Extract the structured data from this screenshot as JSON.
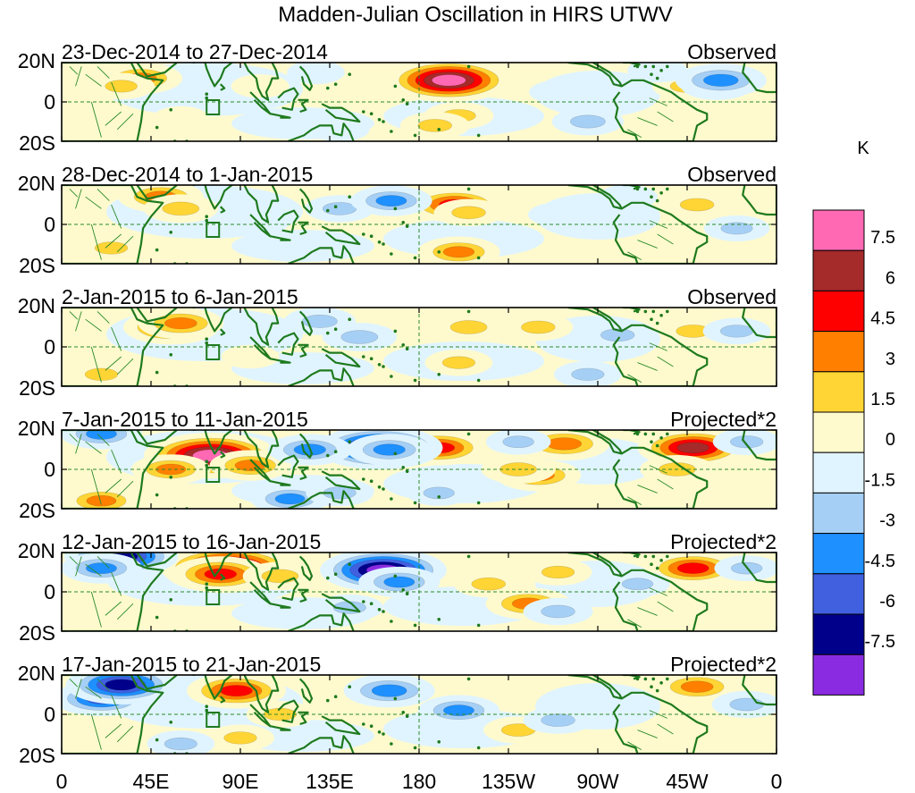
{
  "chart_data": {
    "type": "heatmap",
    "title": "Madden-Julian Oscillation in HIRS UTWV",
    "units_label": "K",
    "x_ticks": [
      "0",
      "45E",
      "90E",
      "135E",
      "180",
      "135W",
      "90W",
      "45W",
      "0"
    ],
    "y_ticks": [
      "20N",
      "0",
      "20S"
    ],
    "x_range_deg_east": [
      0,
      360
    ],
    "y_range_deg": [
      -20,
      20
    ],
    "colorbar": {
      "levels": [
        "-7.5",
        "-6",
        "-4.5",
        "-3",
        "-1.5",
        "0",
        "1.5",
        "3",
        "4.5",
        "6",
        "7.5"
      ],
      "colors": [
        "#8a2be2",
        "#00008b",
        "#4060e0",
        "#1e90ff",
        "#a6cff5",
        "#e0f4ff",
        "#fffacd",
        "#ffd535",
        "#ff7f00",
        "#ff0000",
        "#a52a2a",
        "#ff69b4"
      ]
    },
    "panels": [
      {
        "period": "23-Dec-2014 to 27-Dec-2014",
        "label": "Observed"
      },
      {
        "period": "28-Dec-2014 to 1-Jan-2015",
        "label": "Observed"
      },
      {
        "period": "2-Jan-2015 to 6-Jan-2015",
        "label": "Observed"
      },
      {
        "period": "7-Jan-2015 to 11-Jan-2015",
        "label": "Projected*2"
      },
      {
        "period": "12-Jan-2015 to 16-Jan-2015",
        "label": "Projected*2"
      },
      {
        "period": "17-Jan-2015 to 21-Jan-2015",
        "label": "Projected*2"
      }
    ],
    "anomaly_features": [
      [
        {
          "lon": 190,
          "lat": 11,
          "level": 2.5
        },
        {
          "lon": 195,
          "lat": 11,
          "level": 7.8
        },
        {
          "lon": 40,
          "lat": 12,
          "level": 3.3
        },
        {
          "lon": 30,
          "lat": 8,
          "level": 1.7
        },
        {
          "lon": 200,
          "lat": -7,
          "level": 2.0
        },
        {
          "lon": 188,
          "lat": -12,
          "level": 2.0
        },
        {
          "lon": 315,
          "lat": 8,
          "level": 2.0
        },
        {
          "lon": 100,
          "lat": 8,
          "level": 0.8
        },
        {
          "lon": 60,
          "lat": -8,
          "level": 0.5
        },
        {
          "lon": 128,
          "lat": 15,
          "level": -0.8
        },
        {
          "lon": 250,
          "lat": 5,
          "level": -0.8
        },
        {
          "lon": 265,
          "lat": -10,
          "level": -2.2
        },
        {
          "lon": 330,
          "lat": 8,
          "level": -2.2
        },
        {
          "lon": 332,
          "lat": 11,
          "level": -4.2
        },
        {
          "lon": 300,
          "lat": 16,
          "level": -1.0
        },
        {
          "lon": 140,
          "lat": -14,
          "level": -1.0
        }
      ],
      [
        {
          "lon": 50,
          "lat": 14,
          "level": 3.6
        },
        {
          "lon": 60,
          "lat": 8,
          "level": 2.5
        },
        {
          "lon": 198,
          "lat": 10,
          "level": 4.8
        },
        {
          "lon": 205,
          "lat": 6,
          "level": 2.0
        },
        {
          "lon": 200,
          "lat": -14,
          "level": 3.3
        },
        {
          "lon": 320,
          "lat": 10,
          "level": 2.0
        },
        {
          "lon": 25,
          "lat": -12,
          "level": 1.8
        },
        {
          "lon": 140,
          "lat": 8,
          "level": -2.0
        },
        {
          "lon": 166,
          "lat": 12,
          "level": -3.2
        },
        {
          "lon": 100,
          "lat": 0,
          "level": -0.5
        },
        {
          "lon": 250,
          "lat": 5,
          "level": -1.0
        },
        {
          "lon": 340,
          "lat": -2,
          "level": -1.6
        },
        {
          "lon": 285,
          "lat": 14,
          "level": -1.0
        }
      ],
      [
        {
          "lon": 55,
          "lat": 10,
          "level": 4.6
        },
        {
          "lon": 60,
          "lat": 12,
          "level": 3.6
        },
        {
          "lon": 205,
          "lat": 10,
          "level": 2.5
        },
        {
          "lon": 240,
          "lat": 10,
          "level": 2.0
        },
        {
          "lon": 200,
          "lat": -8,
          "level": 1.8
        },
        {
          "lon": 95,
          "lat": -5,
          "level": 0.8
        },
        {
          "lon": 318,
          "lat": 8,
          "level": 2.0
        },
        {
          "lon": 20,
          "lat": -14,
          "level": 1.8
        },
        {
          "lon": 130,
          "lat": 13,
          "level": -2.2
        },
        {
          "lon": 150,
          "lat": 5,
          "level": -2.5
        },
        {
          "lon": 280,
          "lat": 6,
          "level": -2.0
        },
        {
          "lon": 265,
          "lat": -14,
          "level": -1.8
        },
        {
          "lon": 340,
          "lat": 8,
          "level": -1.8
        }
      ],
      [
        {
          "lon": 78,
          "lat": 8,
          "level": 7.0
        },
        {
          "lon": 75,
          "lat": 7,
          "level": 8.5
        },
        {
          "lon": 55,
          "lat": 0,
          "level": 3.0
        },
        {
          "lon": 95,
          "lat": 2,
          "level": 3.2
        },
        {
          "lon": 190,
          "lat": 11,
          "level": 4.8
        },
        {
          "lon": 253,
          "lat": 13,
          "level": 4.2
        },
        {
          "lon": 240,
          "lat": -3,
          "level": 3.6
        },
        {
          "lon": 230,
          "lat": 0,
          "level": 2.5
        },
        {
          "lon": 318,
          "lat": 11,
          "level": 6.2
        },
        {
          "lon": 310,
          "lat": 0,
          "level": 2.5
        },
        {
          "lon": 20,
          "lat": -16,
          "level": 3.0
        },
        {
          "lon": 160,
          "lat": 11,
          "level": -7.8
        },
        {
          "lon": 165,
          "lat": 10,
          "level": -3.5
        },
        {
          "lon": 125,
          "lat": 10,
          "level": -3.5
        },
        {
          "lon": 230,
          "lat": 14,
          "level": -1.5
        },
        {
          "lon": 115,
          "lat": -15,
          "level": -3.0
        },
        {
          "lon": 140,
          "lat": -12,
          "level": -1.8
        },
        {
          "lon": 20,
          "lat": 18,
          "level": -3.2
        },
        {
          "lon": 345,
          "lat": 14,
          "level": -1.8
        },
        {
          "lon": 190,
          "lat": -12,
          "level": -1.5
        }
      ],
      [
        {
          "lon": 82,
          "lat": 10,
          "level": 7.0
        },
        {
          "lon": 84,
          "lat": 12,
          "level": 8.6
        },
        {
          "lon": 80,
          "lat": 9,
          "level": 5.0
        },
        {
          "lon": 110,
          "lat": 8,
          "level": 2.5
        },
        {
          "lon": 235,
          "lat": -6,
          "level": 3.6
        },
        {
          "lon": 215,
          "lat": 4,
          "level": 2.0
        },
        {
          "lon": 318,
          "lat": 12,
          "level": 4.8
        },
        {
          "lon": 250,
          "lat": 10,
          "level": 1.8
        },
        {
          "lon": 162,
          "lat": 11,
          "level": -7.8
        },
        {
          "lon": 170,
          "lat": 5,
          "level": -3.2
        },
        {
          "lon": 145,
          "lat": -8,
          "level": -1.8
        },
        {
          "lon": 30,
          "lat": 18,
          "level": -6.5
        },
        {
          "lon": 20,
          "lat": 12,
          "level": -3.2
        },
        {
          "lon": 250,
          "lat": -10,
          "level": -2.0
        },
        {
          "lon": 290,
          "lat": 4,
          "level": -1.5
        },
        {
          "lon": 345,
          "lat": 12,
          "level": -1.5
        }
      ],
      [
        {
          "lon": 88,
          "lat": 12,
          "level": 5.0
        },
        {
          "lon": 110,
          "lat": 0,
          "level": 1.8
        },
        {
          "lon": 320,
          "lat": 14,
          "level": 3.6
        },
        {
          "lon": 230,
          "lat": -8,
          "level": 2.0
        },
        {
          "lon": 90,
          "lat": -12,
          "level": 1.8
        },
        {
          "lon": 20,
          "lat": 8,
          "level": -4.8
        },
        {
          "lon": 30,
          "lat": 15,
          "level": -6.2
        },
        {
          "lon": 165,
          "lat": 12,
          "level": -4.2
        },
        {
          "lon": 200,
          "lat": 2,
          "level": -3.2
        },
        {
          "lon": 250,
          "lat": -3,
          "level": -2.0
        },
        {
          "lon": 345,
          "lat": 5,
          "level": -2.0
        },
        {
          "lon": 60,
          "lat": -15,
          "level": -1.8
        }
      ]
    ]
  }
}
